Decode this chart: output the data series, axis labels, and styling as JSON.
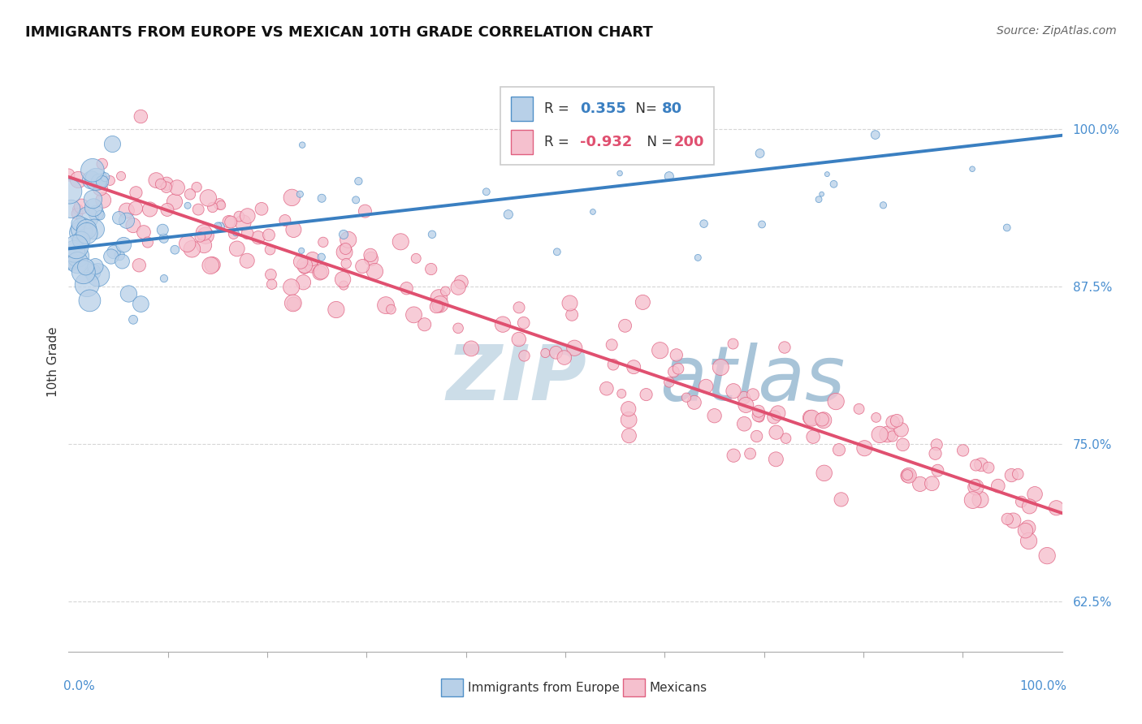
{
  "title": "IMMIGRANTS FROM EUROPE VS MEXICAN 10TH GRADE CORRELATION CHART",
  "source": "Source: ZipAtlas.com",
  "ylabel": "10th Grade",
  "y_tick_values": [
    0.625,
    0.75,
    0.875,
    1.0
  ],
  "y_tick_labels": [
    "62.5%",
    "75.0%",
    "87.5%",
    "100.0%"
  ],
  "xlim": [
    0.0,
    1.0
  ],
  "ylim": [
    0.585,
    1.045
  ],
  "legend_blue_rval": "0.355",
  "legend_blue_nval": "80",
  "legend_pink_rval": "-0.932",
  "legend_pink_nval": "200",
  "blue_fill": "#b8d0e8",
  "pink_fill": "#f5c0ce",
  "blue_edge": "#5090c8",
  "pink_edge": "#e06080",
  "blue_line_color": "#3a7fc1",
  "pink_line_color": "#e05070",
  "watermark_color": "#d5e8f5",
  "background_color": "#ffffff",
  "grid_color": "#cccccc",
  "title_fontsize": 13,
  "tick_label_color": "#4a8fd0",
  "blue_line_y0": 0.905,
  "blue_line_y1": 0.995,
  "pink_line_y0": 0.962,
  "pink_line_y1": 0.695
}
